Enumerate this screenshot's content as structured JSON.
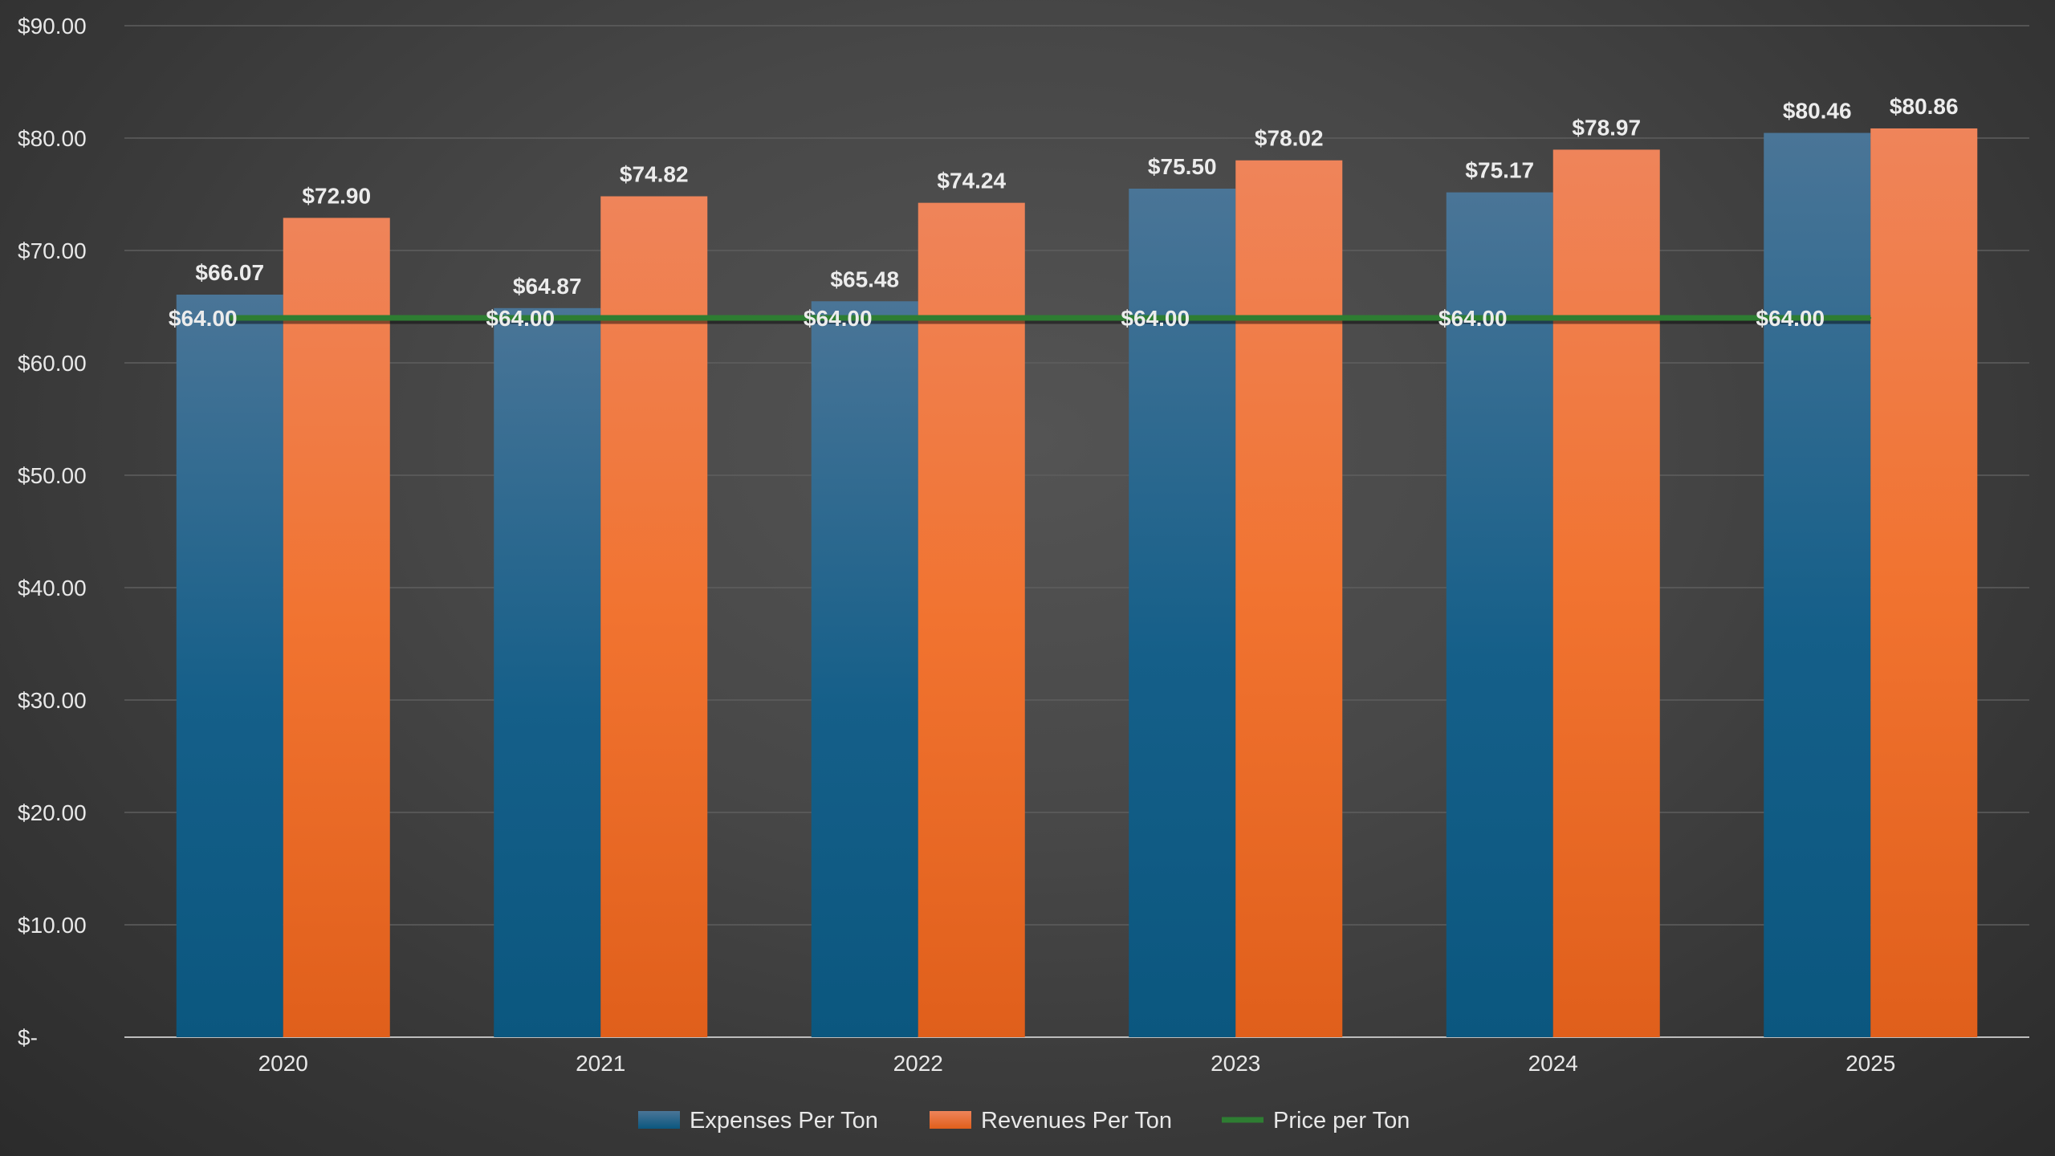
{
  "chart_data": {
    "type": "bar",
    "categories": [
      "2020",
      "2021",
      "2022",
      "2023",
      "2024",
      "2025"
    ],
    "series": [
      {
        "name": "Expenses Per Ton",
        "kind": "bar",
        "values": [
          66.07,
          64.87,
          65.48,
          75.5,
          75.17,
          80.46
        ],
        "labels": [
          "$66.07",
          "$64.87",
          "$65.48",
          "$75.50",
          "$75.17",
          "$80.46"
        ],
        "color": "#0e5a84"
      },
      {
        "name": "Revenues Per Ton",
        "kind": "bar",
        "values": [
          72.9,
          74.82,
          74.24,
          78.02,
          78.97,
          80.86
        ],
        "labels": [
          "$72.90",
          "$74.82",
          "$74.24",
          "$78.02",
          "$78.97",
          "$80.86"
        ],
        "color": "#f07027"
      },
      {
        "name": "Price per Ton",
        "kind": "line",
        "values": [
          64.0,
          64.0,
          64.0,
          64.0,
          64.0,
          64.0
        ],
        "labels": [
          "$64.00",
          "$64.00",
          "$64.00",
          "$64.00",
          "$64.00",
          "$64.00"
        ],
        "color": "#2e7d32"
      }
    ],
    "ylim": [
      0,
      90
    ],
    "yticks": [
      0,
      10,
      20,
      30,
      40,
      50,
      60,
      70,
      80,
      90
    ],
    "ytick_labels": [
      "$-",
      "$10.00",
      "$20.00",
      "$30.00",
      "$40.00",
      "$50.00",
      "$60.00",
      "$70.00",
      "$80.00",
      "$90.00"
    ],
    "grid": true,
    "legend": "bottom-center",
    "title": "",
    "xlabel": "",
    "ylabel": ""
  }
}
